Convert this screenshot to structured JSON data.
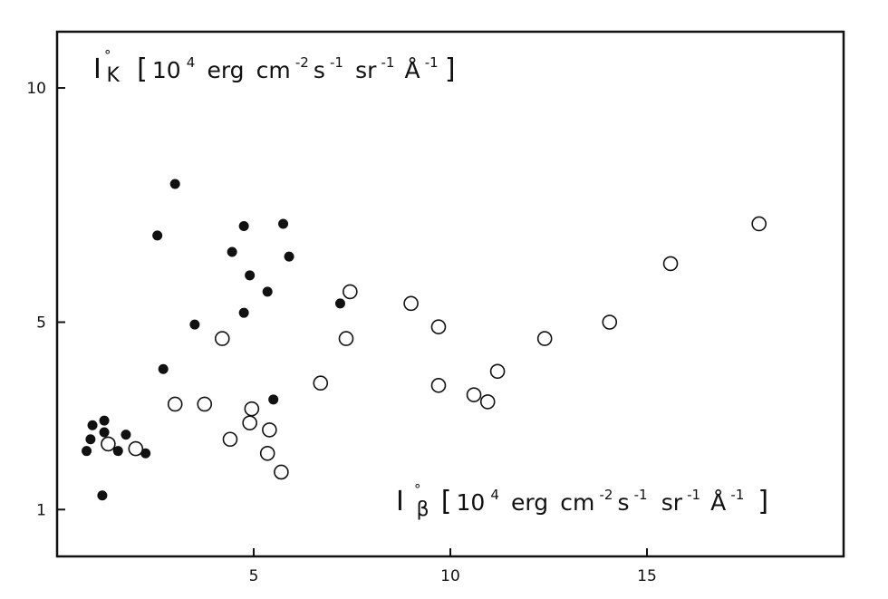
{
  "chart_data": {
    "type": "scatter",
    "title": "",
    "xlabel": {
      "symbol": "I",
      "ring": "°",
      "subscript": "β",
      "bracket_open": "[",
      "unit_prefix": "10",
      "unit_exp": "4",
      "unit_erg": "erg",
      "unit_cm": "cm",
      "unit_cm_exp": "-2",
      "unit_s": "s",
      "unit_s_exp": "-1",
      "unit_sr": "sr",
      "unit_sr_exp": "-1",
      "unit_A": "Å",
      "unit_A_exp": "-1",
      "bracket_close": "]"
    },
    "ylabel": {
      "symbol": "I",
      "ring": "°",
      "subscript": "K",
      "bracket_open": "[",
      "unit_prefix": "10",
      "unit_exp": "4",
      "unit_erg": "erg",
      "unit_cm": "cm",
      "unit_cm_exp": "-2",
      "unit_s": "s",
      "unit_s_exp": "-1",
      "unit_sr": "sr",
      "unit_sr_exp": "-1",
      "unit_A": "Å",
      "unit_A_exp": "-1",
      "bracket_close": "]"
    },
    "xlim": [
      0,
      20
    ],
    "ylim": [
      0,
      11.2
    ],
    "x_ticks": [
      5,
      10,
      15
    ],
    "x_tick_labels": [
      "5",
      "10",
      "15"
    ],
    "y_ticks": [
      1,
      5,
      10
    ],
    "y_tick_labels": [
      "1",
      "5",
      "10"
    ],
    "grid": false,
    "legend": "none",
    "marker_color": "#111111",
    "series": [
      {
        "marker": "filled-circle",
        "points": [
          [
            0.85,
            2.5
          ],
          [
            0.75,
            2.25
          ],
          [
            0.9,
            2.8
          ],
          [
            1.2,
            2.9
          ],
          [
            1.2,
            2.65
          ],
          [
            1.55,
            2.25
          ],
          [
            1.75,
            2.6
          ],
          [
            2.25,
            2.2
          ],
          [
            1.15,
            1.3
          ],
          [
            2.55,
            6.85
          ],
          [
            2.7,
            4.0
          ],
          [
            3.0,
            7.95
          ],
          [
            3.5,
            4.95
          ],
          [
            4.45,
            6.5
          ],
          [
            4.75,
            7.05
          ],
          [
            4.75,
            5.2
          ],
          [
            4.9,
            6.0
          ],
          [
            5.75,
            7.1
          ],
          [
            5.9,
            6.4
          ],
          [
            5.35,
            5.65
          ],
          [
            5.5,
            3.35
          ],
          [
            7.2,
            5.4
          ]
        ]
      },
      {
        "marker": "open-circle",
        "points": [
          [
            1.3,
            2.4
          ],
          [
            2.0,
            2.3
          ],
          [
            3.0,
            3.25
          ],
          [
            3.75,
            3.25
          ],
          [
            4.2,
            4.65
          ],
          [
            4.4,
            2.5
          ],
          [
            4.9,
            2.85
          ],
          [
            4.95,
            3.15
          ],
          [
            5.35,
            2.2
          ],
          [
            5.4,
            2.7
          ],
          [
            5.7,
            1.8
          ],
          [
            6.7,
            3.7
          ],
          [
            7.35,
            4.65
          ],
          [
            7.45,
            5.65
          ],
          [
            9.0,
            5.4
          ],
          [
            9.7,
            3.65
          ],
          [
            9.7,
            4.9
          ],
          [
            10.6,
            3.45
          ],
          [
            10.95,
            3.3
          ],
          [
            11.2,
            3.95
          ],
          [
            12.4,
            4.65
          ],
          [
            14.05,
            5.0
          ],
          [
            15.6,
            6.25
          ],
          [
            17.85,
            7.1
          ]
        ]
      }
    ]
  }
}
